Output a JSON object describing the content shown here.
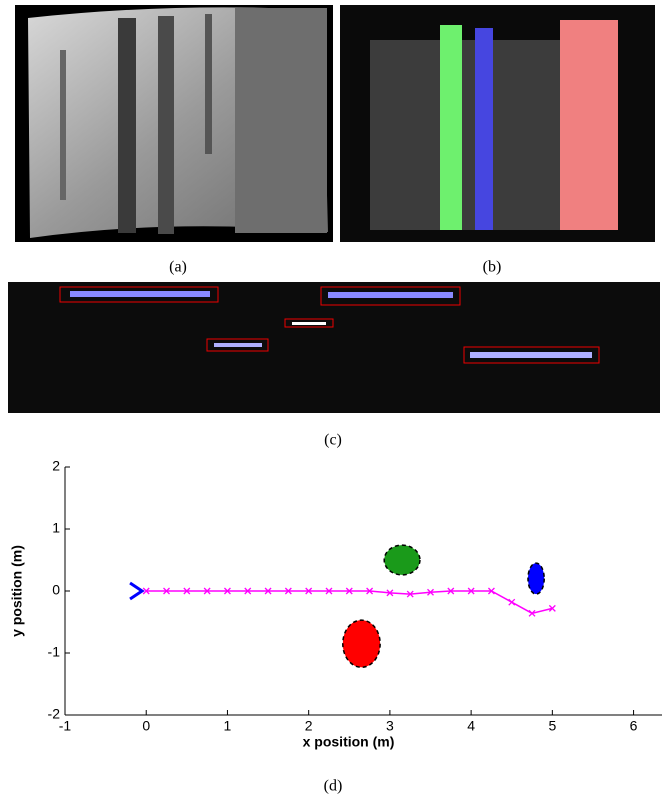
{
  "captions": [
    "(a)",
    "(b)",
    "(c)",
    "(d)"
  ],
  "chart_data": {
    "type": "line",
    "xlabel": "x position (m)",
    "ylabel": "y position (m)",
    "xlim": [
      -1,
      6.35
    ],
    "ylim": [
      -2,
      2
    ],
    "xticks": [
      -1,
      0,
      1,
      2,
      3,
      4,
      5,
      6
    ],
    "yticks": [
      -2,
      -1,
      0,
      1,
      2
    ],
    "series": [
      {
        "color": "#ff00ff",
        "x": [
          0,
          0.25,
          0.5,
          0.75,
          1,
          1.25,
          1.5,
          1.75,
          2,
          2.25,
          2.5,
          2.75,
          3,
          3.25,
          3.5,
          3.75,
          4,
          4.25,
          4.5,
          4.75,
          5
        ],
        "y": [
          0,
          0,
          0,
          0,
          0,
          0,
          0,
          0,
          0,
          0,
          0,
          0,
          -0.03,
          -0.05,
          -0.02,
          0,
          0,
          0,
          -0.18,
          -0.36,
          -0.28
        ]
      }
    ],
    "obstacles": [
      {
        "x": 3.15,
        "y": 0.5,
        "rx": 0.22,
        "ry": 0.24,
        "color": "#1a9a1a"
      },
      {
        "x": 2.65,
        "y": -0.85,
        "rx": 0.23,
        "ry": 0.38,
        "color": "#ff0000"
      },
      {
        "x": 4.8,
        "y": 0.2,
        "rx": 0.1,
        "ry": 0.25,
        "color": "#0000ff"
      }
    ],
    "start": {
      "x": -0.15,
      "y": 0,
      "color": "#0000ff"
    }
  }
}
